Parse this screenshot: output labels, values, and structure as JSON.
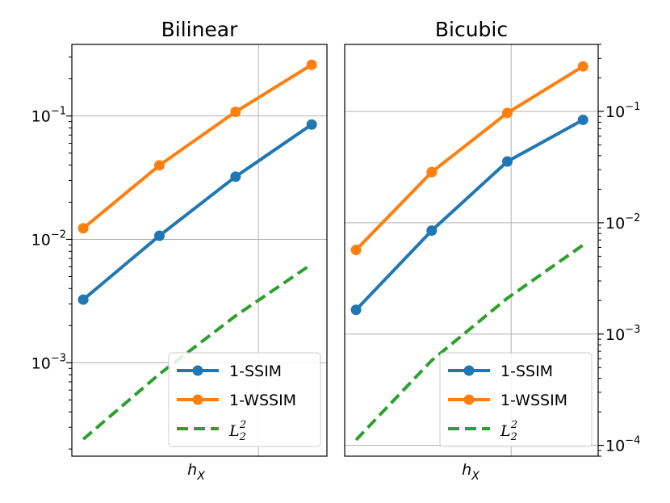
{
  "chart_data": [
    {
      "type": "line",
      "title": "Bilinear",
      "xlabel": "h_X",
      "yscale": "log",
      "ylim": [
        0.000175,
        0.38
      ],
      "grid": true,
      "x": [
        1,
        2,
        3,
        4
      ],
      "series": [
        {
          "name": "1-SSIM",
          "values": [
            0.00325,
            0.0107,
            0.0322,
            0.0852
          ],
          "color": "#1f77b4",
          "style": "solid-markers"
        },
        {
          "name": "1-WSSIM",
          "values": [
            0.0123,
            0.0398,
            0.108,
            0.26
          ],
          "color": "#ff7f0e",
          "style": "solid-markers"
        },
        {
          "name": "L_2^2",
          "values": [
            0.00024,
            0.00081,
            0.0024,
            0.0063
          ],
          "color": "#2ca02c",
          "style": "dashed"
        }
      ],
      "yticks": [
        {
          "value": 0.1,
          "base": "10",
          "exp": "−1"
        },
        {
          "value": 0.01,
          "base": "10",
          "exp": "−2"
        },
        {
          "value": 0.001,
          "base": "10",
          "exp": "−3"
        }
      ],
      "legend_position": "lower-right"
    },
    {
      "type": "line",
      "title": "Bicubic",
      "xlabel": "h_X",
      "yscale": "log",
      "ylim": [
        8e-05,
        0.4
      ],
      "grid": true,
      "x": [
        1,
        2,
        3,
        4
      ],
      "series": [
        {
          "name": "1-SSIM",
          "values": [
            0.00165,
            0.0085,
            0.0355,
            0.084
          ],
          "color": "#1f77b4",
          "style": "solid-markers"
        },
        {
          "name": "1-WSSIM",
          "values": [
            0.0057,
            0.0285,
            0.097,
            0.254
          ],
          "color": "#ff7f0e",
          "style": "solid-markers"
        },
        {
          "name": "L_2^2",
          "values": [
            0.000112,
            0.00058,
            0.0021,
            0.0063
          ],
          "color": "#2ca02c",
          "style": "dashed"
        }
      ],
      "yticks": [
        {
          "value": 0.1,
          "base": "10",
          "exp": "−1"
        },
        {
          "value": 0.01,
          "base": "10",
          "exp": "−2"
        },
        {
          "value": 0.001,
          "base": "10",
          "exp": "−3"
        },
        {
          "value": 0.0001,
          "base": "10",
          "exp": "−4"
        }
      ],
      "legend_position": "lower-right"
    }
  ],
  "legend_labels": {
    "ssim": "1-SSIM",
    "wssim": "1-WSSIM",
    "l2_base": "L",
    "l2_sub": "2",
    "l2_sup": "2"
  },
  "xlabel_base": "h",
  "xlabel_sub": "X"
}
